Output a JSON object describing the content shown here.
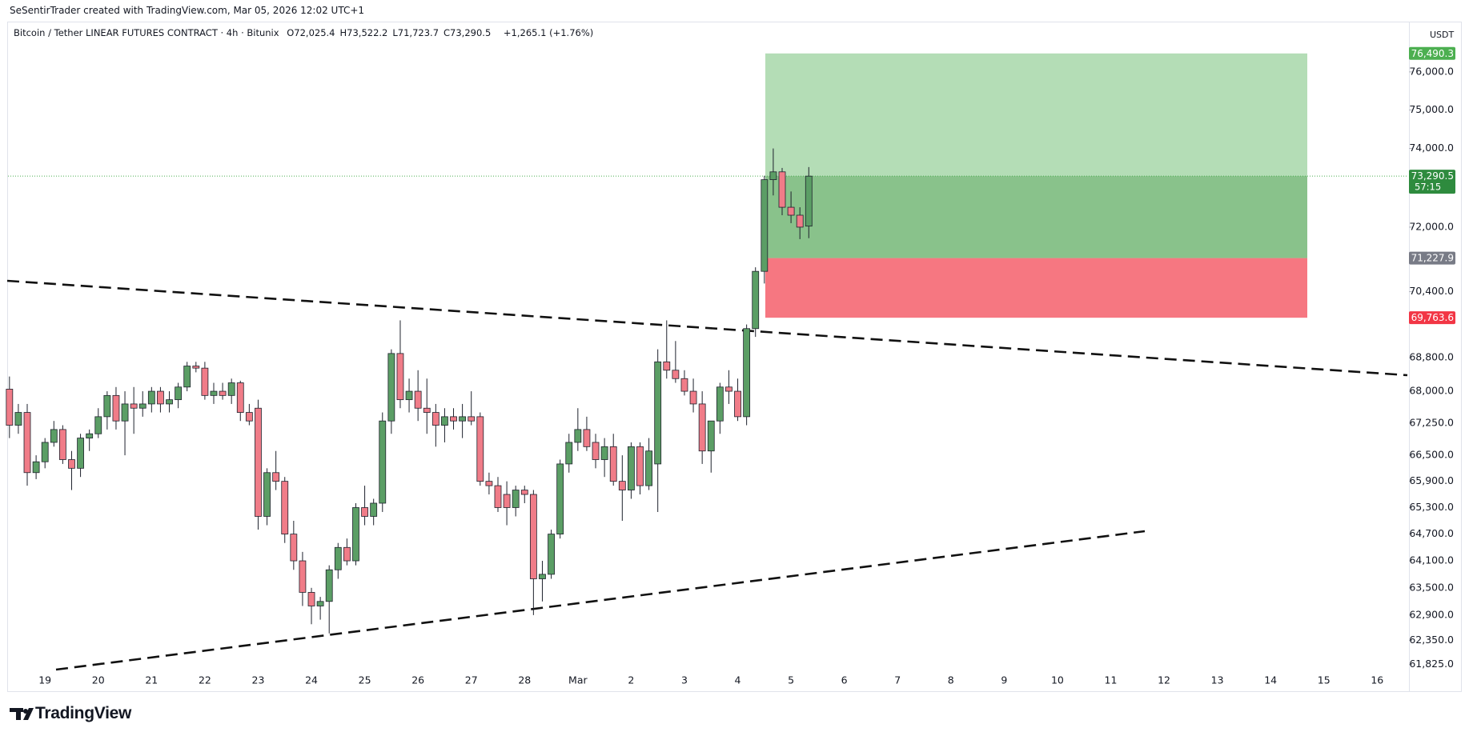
{
  "header": {
    "attribution": "SeSentirTrader created with TradingView.com, Mar 05, 2026 12:02 UTC+1",
    "symbol": "Bitcoin / Tether LINEAR FUTURES CONTRACT · 4h · Bitunix",
    "legend": [
      {
        "key": "O",
        "value": "72,025.4"
      },
      {
        "key": "H",
        "value": "73,522.2"
      },
      {
        "key": "L",
        "value": "71,723.7"
      },
      {
        "key": "C",
        "value": "73,290.5"
      }
    ],
    "change": "+1,265.1 (+1.76%)"
  },
  "footer": {
    "logo": "TradingView"
  },
  "chart_data": {
    "type": "candlestick",
    "currency": "USDT",
    "categories": [
      null,
      null,
      null,
      null,
      "19",
      null,
      null,
      null,
      null,
      null,
      "20",
      null,
      null,
      null,
      null,
      null,
      "21",
      null,
      null,
      null,
      null,
      null,
      "22",
      null,
      null,
      null,
      null,
      null,
      "23",
      null,
      null,
      null,
      null,
      null,
      "24",
      null,
      null,
      null,
      null,
      null,
      "25",
      null,
      null,
      null,
      null,
      null,
      "26",
      null,
      null,
      null,
      null,
      null,
      "27",
      null,
      null,
      null,
      null,
      null,
      "28",
      null,
      null,
      null,
      null,
      null,
      "Mar",
      null,
      null,
      null,
      null,
      null,
      "2",
      null,
      null,
      null,
      null,
      null,
      "3",
      null,
      null,
      null,
      null,
      null,
      "4",
      null,
      null,
      null,
      null,
      null,
      "5",
      null,
      null,
      null,
      null,
      null,
      "6",
      null,
      null,
      null,
      null,
      null,
      "7",
      null,
      null,
      null,
      null,
      null,
      "8",
      null,
      null,
      null,
      null,
      null,
      "9",
      null,
      null,
      null,
      null,
      null,
      "10",
      null,
      null,
      null,
      null,
      null,
      "11",
      null,
      null,
      null,
      null,
      null,
      "12",
      null,
      null,
      null,
      null,
      null,
      "13",
      null,
      null,
      null,
      null,
      null,
      "14",
      null,
      null,
      null,
      null,
      null,
      "15",
      null,
      null,
      null,
      null,
      null,
      "16",
      null,
      null,
      null
    ],
    "open": [
      68050,
      67200,
      67500,
      66100,
      66350,
      66800,
      67100,
      66400,
      66200,
      66900,
      67000,
      67400,
      67900,
      67300,
      67700,
      67600,
      67700,
      68000,
      67700,
      67800,
      68100,
      68600,
      68550,
      67900,
      68000,
      67900,
      68200,
      67500,
      67600,
      65100,
      66100,
      65900,
      64700,
      64100,
      63400,
      63100,
      63200,
      63900,
      64400,
      64100,
      65300,
      65100,
      65400,
      67300,
      68900,
      67800,
      68000,
      67600,
      67500,
      67200,
      67400,
      67300,
      67400,
      67400,
      65900,
      65800,
      65600,
      65300,
      65700,
      65600,
      63700,
      63800,
      64700,
      66300,
      66800,
      67100,
      66800,
      66400,
      66700,
      65900,
      65700,
      66700,
      65800,
      66300,
      68700,
      68500,
      68300,
      68000,
      67700,
      66600,
      67300,
      68100,
      68000,
      67400,
      69500,
      70900,
      73200,
      73400,
      72500,
      72300,
      72025.4,
      null,
      null,
      null,
      null,
      null,
      null,
      null,
      null,
      null,
      null,
      null,
      null,
      null,
      null,
      null,
      null,
      null,
      null,
      null,
      null,
      null,
      null,
      null,
      null,
      null,
      null,
      null,
      null,
      null,
      null,
      null,
      null,
      null,
      null,
      null,
      null,
      null,
      null,
      null,
      null,
      null,
      null,
      null,
      null,
      null,
      null,
      null,
      null,
      null,
      null,
      null,
      null,
      null,
      null,
      null,
      null,
      null,
      null,
      null,
      null,
      null,
      null,
      null,
      null,
      null,
      null,
      null
    ],
    "high": [
      68350,
      67700,
      67700,
      66500,
      66900,
      67300,
      67200,
      66600,
      67000,
      67100,
      67600,
      68000,
      68100,
      68000,
      68100,
      68000,
      68100,
      68100,
      68000,
      68200,
      68700,
      68700,
      68700,
      68200,
      68200,
      68300,
      68250,
      67700,
      67800,
      66200,
      66600,
      66000,
      65000,
      64300,
      63500,
      63300,
      64000,
      64500,
      64600,
      65400,
      65800,
      65500,
      67500,
      69000,
      69700,
      68300,
      68500,
      68300,
      67700,
      67600,
      67600,
      67700,
      68000,
      67500,
      66100,
      66000,
      65900,
      65800,
      65800,
      65700,
      64100,
      64800,
      66400,
      67000,
      67600,
      67400,
      67000,
      66900,
      67000,
      66500,
      66800,
      66800,
      66900,
      69000,
      69700,
      69200,
      68500,
      68300,
      68000,
      67300,
      68200,
      68500,
      68300,
      69600,
      71000,
      73300,
      74000,
      73500,
      72900,
      72500,
      73522.2,
      null,
      null,
      null,
      null,
      null,
      null,
      null,
      null,
      null,
      null,
      null,
      null,
      null,
      null,
      null,
      null,
      null,
      null,
      null,
      null,
      null,
      null,
      null,
      null,
      null,
      null,
      null,
      null,
      null,
      null,
      null,
      null,
      null,
      null,
      null,
      null,
      null,
      null,
      null,
      null,
      null,
      null,
      null,
      null,
      null,
      null,
      null,
      null,
      null,
      null,
      null,
      null,
      null,
      null,
      null,
      null,
      null,
      null,
      null,
      null,
      null,
      null,
      null,
      null,
      null,
      null,
      null
    ],
    "low": [
      66900,
      67000,
      65800,
      65950,
      66200,
      66700,
      66300,
      65700,
      66000,
      66600,
      66900,
      67100,
      67100,
      66500,
      67000,
      67400,
      67500,
      67500,
      67500,
      67600,
      68000,
      68450,
      67800,
      67700,
      67800,
      67700,
      67300,
      67200,
      64800,
      64900,
      65700,
      64500,
      63900,
      63100,
      62700,
      62800,
      62500,
      63700,
      64000,
      64000,
      64900,
      64900,
      65200,
      67000,
      67600,
      67500,
      67300,
      67000,
      66700,
      66800,
      67100,
      66900,
      67200,
      65800,
      65600,
      65200,
      64900,
      65100,
      65400,
      62900,
      63200,
      63700,
      64600,
      66100,
      66600,
      66600,
      66200,
      66000,
      65800,
      65000,
      65500,
      65600,
      65700,
      65200,
      68300,
      68200,
      67900,
      67500,
      66300,
      66100,
      67000,
      67700,
      67300,
      67200,
      69300,
      70600,
      72800,
      72300,
      72100,
      71700,
      71723.7,
      null,
      null,
      null,
      null,
      null,
      null,
      null,
      null,
      null,
      null,
      null,
      null,
      null,
      null,
      null,
      null,
      null,
      null,
      null,
      null,
      null,
      null,
      null,
      null,
      null,
      null,
      null,
      null,
      null,
      null,
      null,
      null,
      null,
      null,
      null,
      null,
      null,
      null,
      null,
      null,
      null,
      null,
      null,
      null,
      null,
      null,
      null,
      null,
      null,
      null,
      null,
      null,
      null,
      null,
      null,
      null,
      null,
      null,
      null,
      null,
      null,
      null,
      null,
      null,
      null,
      null,
      null
    ],
    "close": [
      67200,
      67500,
      66100,
      66350,
      66800,
      67100,
      66400,
      66200,
      66900,
      67000,
      67400,
      67900,
      67300,
      67700,
      67600,
      67700,
      68000,
      67700,
      67800,
      68100,
      68600,
      68550,
      67900,
      68000,
      67900,
      68200,
      67500,
      67300,
      65100,
      66100,
      65900,
      64700,
      64100,
      63400,
      63100,
      63200,
      63900,
      64400,
      64100,
      65300,
      65100,
      65400,
      67300,
      68900,
      67800,
      68000,
      67600,
      67500,
      67200,
      67400,
      67300,
      67400,
      67300,
      65900,
      65800,
      65300,
      65300,
      65700,
      65600,
      63700,
      63800,
      64700,
      66300,
      66800,
      67100,
      66700,
      66400,
      66700,
      65900,
      65700,
      66700,
      65800,
      66600,
      68700,
      68500,
      68300,
      68000,
      67700,
      66600,
      67300,
      68100,
      68000,
      67400,
      69500,
      70900,
      73200,
      73400,
      72500,
      72300,
      72000,
      73290.5,
      null,
      null,
      null,
      null,
      null,
      null,
      null,
      null,
      null,
      null,
      null,
      null,
      null,
      null,
      null,
      null,
      null,
      null,
      null,
      null,
      null,
      null,
      null,
      null,
      null,
      null,
      null,
      null,
      null,
      null,
      null,
      null,
      null,
      null,
      null,
      null,
      null,
      null,
      null,
      null,
      null,
      null,
      null,
      null,
      null,
      null,
      null,
      null,
      null,
      null,
      null,
      null,
      null,
      null,
      null,
      null,
      null,
      null,
      null,
      null,
      null,
      null,
      null,
      null,
      null,
      null,
      null
    ],
    "up_color": "#5b9e65",
    "down_color": "#f07c88",
    "wick_color": "#1e222d",
    "log_scale": true,
    "ylim": [
      61700,
      77300
    ],
    "yticks": [
      {
        "value": 61825,
        "label": "61,825.0"
      },
      {
        "value": 62350,
        "label": "62,350.0"
      },
      {
        "value": 62900,
        "label": "62,900.0"
      },
      {
        "value": 63500,
        "label": "63,500.0"
      },
      {
        "value": 64100,
        "label": "64,100.0"
      },
      {
        "value": 64700,
        "label": "64,700.0"
      },
      {
        "value": 65300,
        "label": "65,300.0"
      },
      {
        "value": 65900,
        "label": "65,900.0"
      },
      {
        "value": 66500,
        "label": "66,500.0"
      },
      {
        "value": 67250,
        "label": "67,250.0"
      },
      {
        "value": 68000,
        "label": "68,000.0"
      },
      {
        "value": 68800,
        "label": "68,800.0"
      },
      {
        "value": 70400,
        "label": "70,400.0"
      },
      {
        "value": 72000,
        "label": "72,000.0"
      },
      {
        "value": 74000,
        "label": "74,000.0"
      },
      {
        "value": 75000,
        "label": "75,000.0"
      },
      {
        "value": 76000,
        "label": "76,000.0"
      }
    ],
    "position": {
      "target": {
        "value": 76490.3,
        "label": "76,490.3",
        "color": "#4caf50"
      },
      "entry": {
        "value": 71227.9,
        "label": "71,227.9",
        "color": "#787b86"
      },
      "stop": {
        "value": 69763.6,
        "label": "69,763.6",
        "color": "#f23645"
      }
    },
    "last_price": {
      "value": 73290.5,
      "label": "73,290.5",
      "color": "#2e8b3e"
    },
    "countdown": "57:15"
  }
}
